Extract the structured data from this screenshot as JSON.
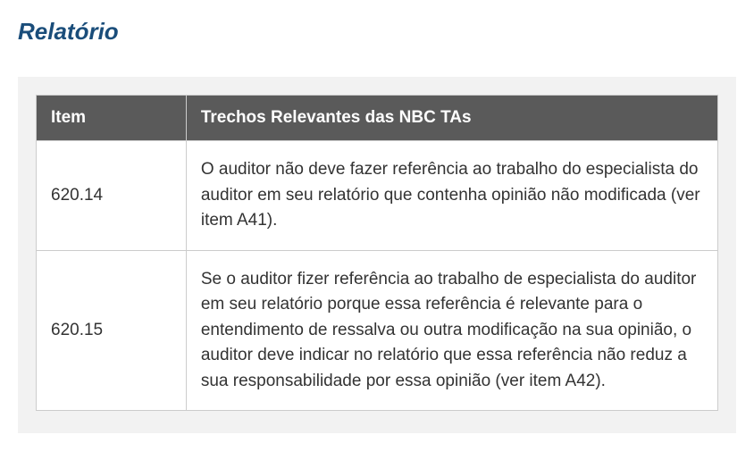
{
  "section": {
    "title": "Relatório"
  },
  "table": {
    "columns": [
      {
        "key": "item",
        "label": "Item"
      },
      {
        "key": "trechos",
        "label": "Trechos Relevantes das NBC TAs"
      }
    ],
    "rows": [
      {
        "item": "620.14",
        "trechos": "O auditor não deve fazer referência ao trabalho do especialista do auditor em seu relatório que contenha opinião não modificada (ver item A41)."
      },
      {
        "item": "620.15",
        "trechos": "Se o auditor fizer referência ao trabalho de especialista do auditor em seu relatório porque essa referência é relevante para o entendimento de ressalva ou outra modificação na sua opinião, o auditor deve indicar no relatório que essa referência não reduz a sua responsabilidade por essa opinião (ver item A42)."
      }
    ],
    "style": {
      "title_color": "#1a4d7a",
      "title_fontsize": 26,
      "header_bg": "#5a5a5a",
      "header_fg": "#ffffff",
      "header_fontsize": 19,
      "cell_fontsize": 19,
      "cell_fg": "#333333",
      "wrapper_bg": "#f2f2f2",
      "table_bg": "#ffffff",
      "border_color": "#cccccc",
      "col_item_width_pct": 22
    }
  }
}
